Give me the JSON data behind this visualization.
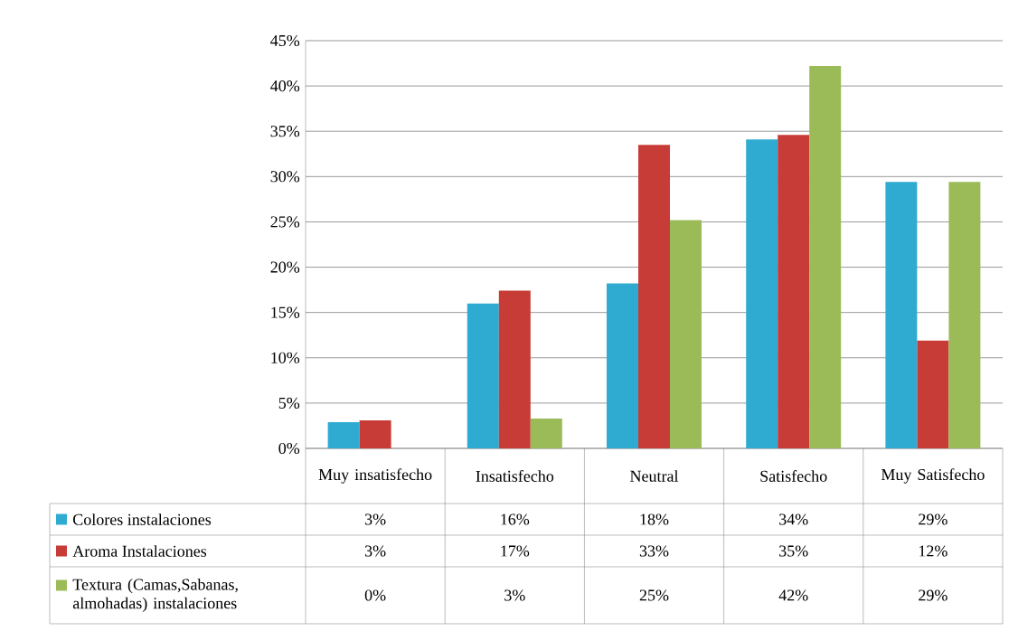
{
  "chart_data": {
    "type": "bar",
    "categories": [
      "Muy insatisfecho",
      "Insatisfecho",
      "Neutral",
      "Satisfecho",
      "Muy Satisfecho"
    ],
    "series": [
      {
        "name": "Colores instalaciones",
        "color": "#2fabd2",
        "values": [
          2.9,
          16.0,
          18.2,
          34.1,
          29.4
        ],
        "value_labels": [
          "3%",
          "16%",
          "18%",
          "34%",
          "29%"
        ]
      },
      {
        "name": "Aroma Instalaciones",
        "color": "#c83c38",
        "values": [
          3.1,
          17.4,
          33.5,
          34.6,
          11.9
        ],
        "value_labels": [
          "3%",
          "17%",
          "33%",
          "35%",
          "12%"
        ]
      },
      {
        "name": "Textura (Camas,Sabanas, almohadas) instalaciones",
        "color": "#9bbb59",
        "values": [
          0,
          3.3,
          25.2,
          42.2,
          29.4
        ],
        "value_labels": [
          "0%",
          "3%",
          "25%",
          "42%",
          "29%"
        ]
      }
    ],
    "ylim": [
      0,
      45
    ],
    "yticks": [
      {
        "value": 0,
        "label": "0%"
      },
      {
        "value": 5,
        "label": "5%"
      },
      {
        "value": 10,
        "label": "10%"
      },
      {
        "value": 15,
        "label": "15%"
      },
      {
        "value": 20,
        "label": "20%"
      },
      {
        "value": 25,
        "label": "25%"
      },
      {
        "value": 30,
        "label": "30%"
      },
      {
        "value": 35,
        "label": "35%"
      },
      {
        "value": 40,
        "label": "40%"
      },
      {
        "value": 45,
        "label": "45%"
      }
    ],
    "grid": "y",
    "legend": "bottom left"
  }
}
